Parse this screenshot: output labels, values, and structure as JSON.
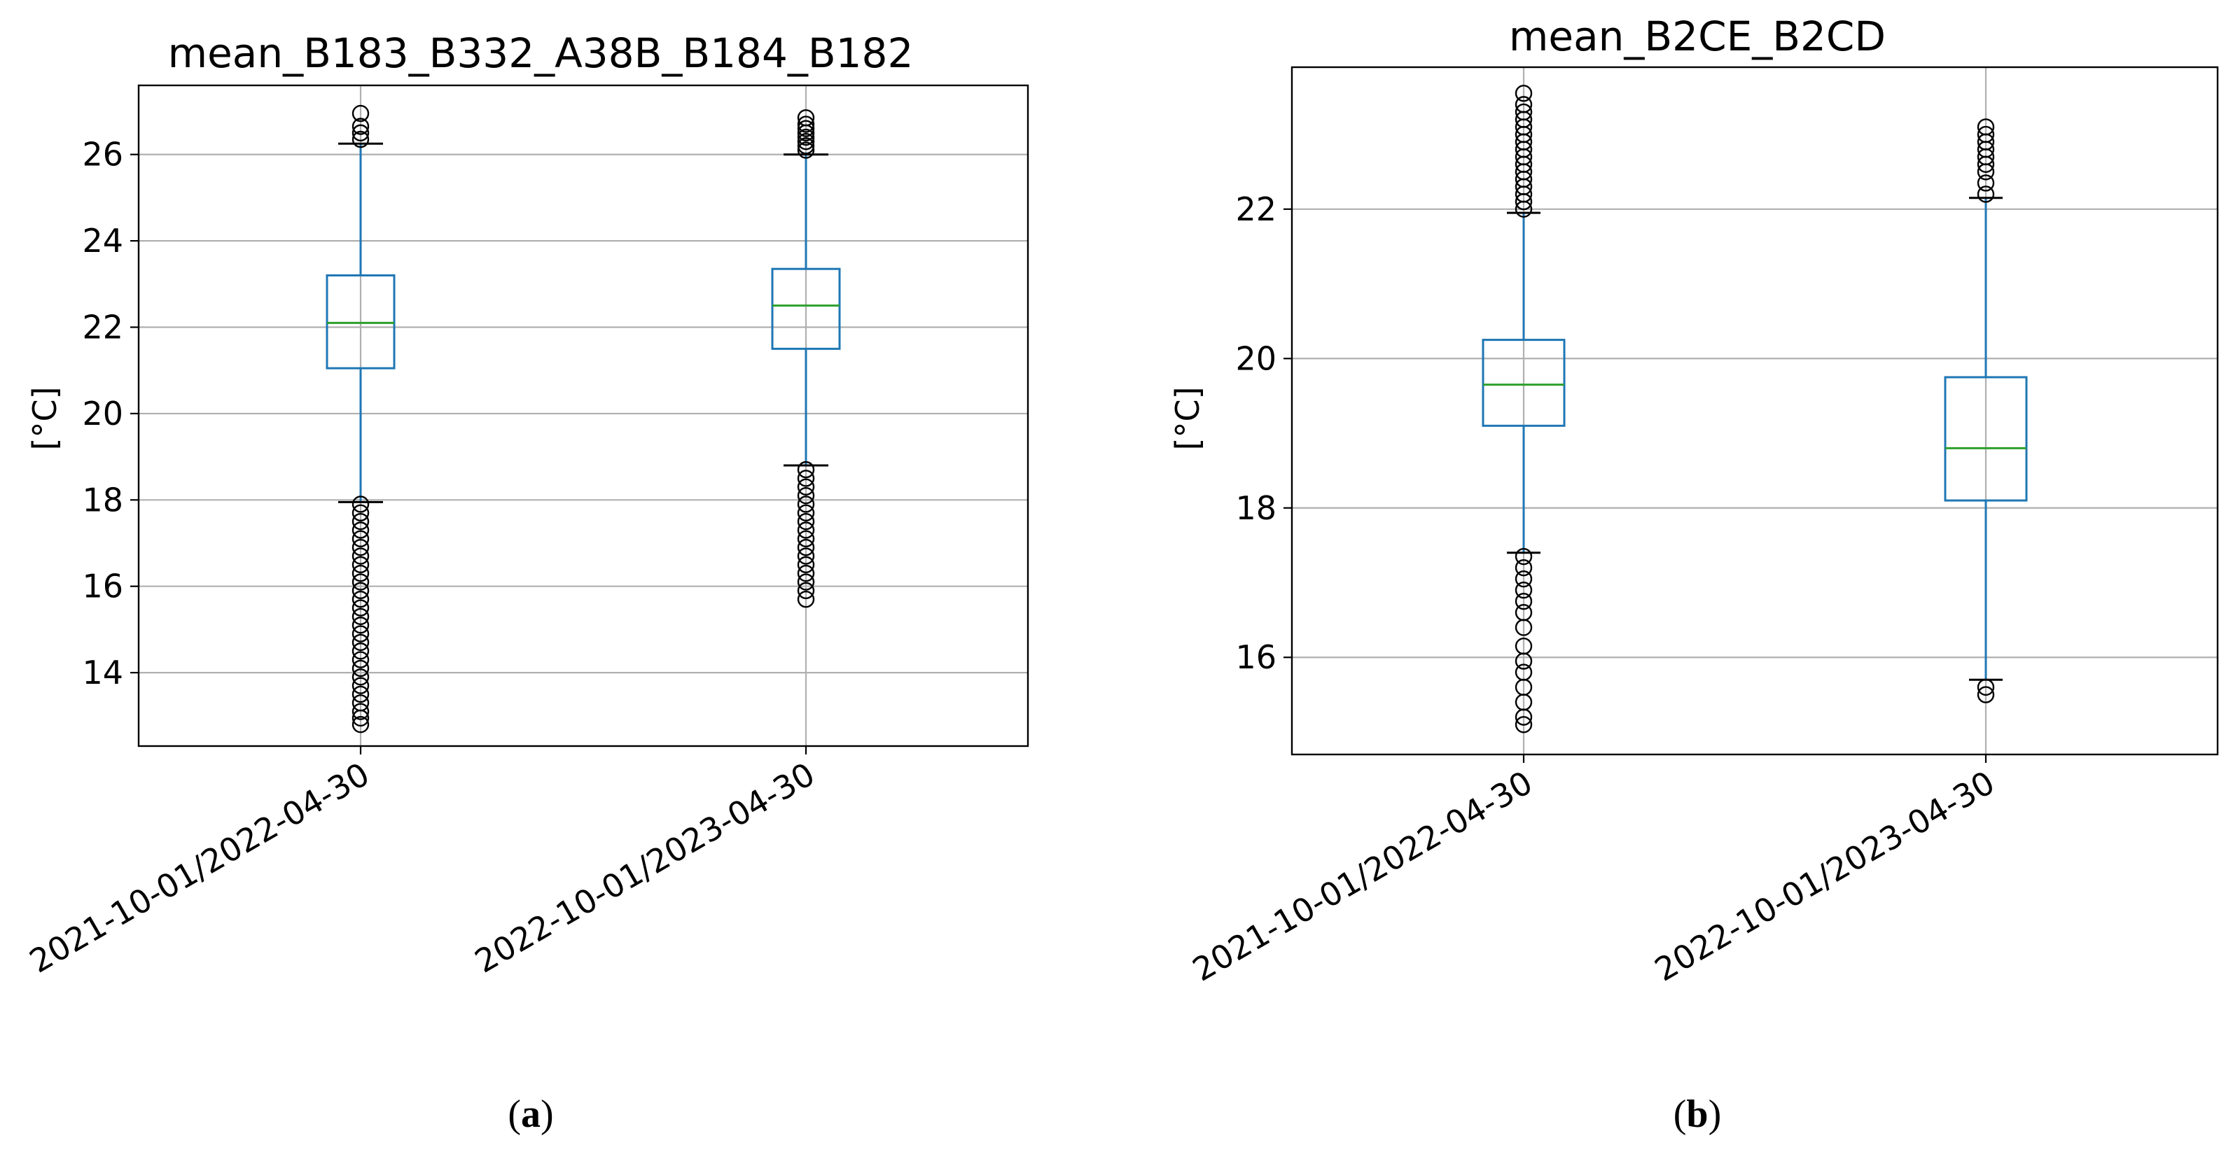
{
  "chart_data": [
    {
      "type": "box",
      "title": "mean_B183_B332_A38B_B184_B182",
      "ylabel": "[°C]",
      "caption_letter": "a",
      "ylim": [
        12.3,
        27.6
      ],
      "yticks": [
        14,
        16,
        18,
        20,
        22,
        24,
        26
      ],
      "grid": true,
      "categories": [
        "2021-10-01/2022-04-30",
        "2022-10-01/2023-04-30"
      ],
      "boxes": [
        {
          "q1": 21.05,
          "median": 22.1,
          "q3": 23.2,
          "whisker_low": 17.95,
          "whisker_high": 26.25,
          "outliers": [
            26.35,
            26.5,
            26.65,
            26.95,
            17.9,
            17.7,
            17.5,
            17.3,
            17.1,
            16.9,
            16.7,
            16.5,
            16.3,
            16.1,
            15.9,
            15.7,
            15.5,
            15.3,
            15.1,
            14.9,
            14.7,
            14.5,
            14.3,
            14.1,
            13.9,
            13.7,
            13.5,
            13.3,
            13.1,
            12.95,
            12.8
          ]
        },
        {
          "q1": 21.5,
          "median": 22.5,
          "q3": 23.35,
          "whisker_low": 18.8,
          "whisker_high": 26.0,
          "outliers": [
            26.1,
            26.2,
            26.3,
            26.4,
            26.5,
            26.6,
            26.7,
            26.85,
            18.7,
            18.5,
            18.3,
            18.1,
            17.9,
            17.7,
            17.5,
            17.3,
            17.1,
            16.9,
            16.7,
            16.5,
            16.3,
            16.1,
            15.9,
            15.7
          ]
        }
      ]
    },
    {
      "type": "box",
      "title": "mean_B2CE_B2CD",
      "ylabel": "[°C]",
      "caption_letter": "b",
      "ylim": [
        14.7,
        23.9
      ],
      "yticks": [
        16,
        18,
        20,
        22
      ],
      "grid": true,
      "categories": [
        "2021-10-01/2022-04-30",
        "2022-10-01/2023-04-30"
      ],
      "boxes": [
        {
          "q1": 19.1,
          "median": 19.65,
          "q3": 20.25,
          "whisker_low": 17.4,
          "whisker_high": 21.95,
          "outliers": [
            22.0,
            22.1,
            22.2,
            22.3,
            22.4,
            22.5,
            22.6,
            22.7,
            22.8,
            22.9,
            23.0,
            23.1,
            23.2,
            23.3,
            23.4,
            23.55,
            17.35,
            17.2,
            17.05,
            16.9,
            16.75,
            16.6,
            16.4,
            16.15,
            15.95,
            15.8,
            15.6,
            15.4,
            15.2,
            15.1
          ]
        },
        {
          "q1": 18.1,
          "median": 18.8,
          "q3": 19.75,
          "whisker_low": 15.7,
          "whisker_high": 22.15,
          "outliers": [
            22.2,
            22.35,
            22.5,
            22.6,
            22.7,
            22.8,
            22.9,
            23.0,
            23.1,
            15.6,
            15.5
          ]
        }
      ]
    }
  ],
  "colors": {
    "box": "#1f77b4",
    "median": "#2ca02c",
    "whisker_cap": "#000000",
    "outlier": "#000000",
    "grid": "#b0b0b0",
    "frame": "#000000"
  }
}
